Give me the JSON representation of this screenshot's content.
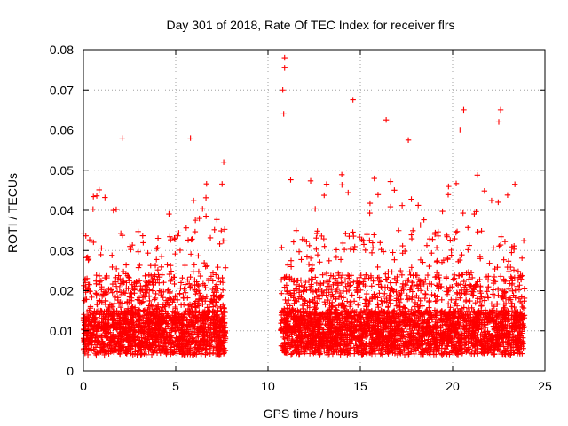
{
  "chart_data": {
    "type": "scatter",
    "title": "Day 301 of 2018, Rate Of TEC Index for receiver flrs",
    "xlabel": "GPS time / hours",
    "ylabel": "ROTI / TECUs",
    "xlim": [
      0,
      25
    ],
    "ylim": [
      0,
      0.08
    ],
    "xticks": [
      0,
      5,
      10,
      15,
      20,
      25
    ],
    "xtick_labels": [
      "0",
      "5",
      "10",
      "15",
      "20",
      "25"
    ],
    "yticks": [
      0,
      0.01,
      0.02,
      0.03,
      0.04,
      0.05,
      0.06,
      0.07,
      0.08
    ],
    "ytick_labels": [
      "0",
      "0.01",
      "0.02",
      "0.03",
      "0.04",
      "0.05",
      "0.06",
      "0.07",
      "0.08"
    ],
    "grid": true,
    "marker": "+",
    "marker_color": "#ff0000",
    "data_segments": [
      {
        "x_start": 0.0,
        "x_end": 7.7,
        "y_floor": 0.002,
        "y_typical_max": 0.035
      },
      {
        "x_start": 10.7,
        "x_end": 23.9,
        "y_floor": 0.002,
        "y_typical_max": 0.035
      }
    ],
    "notable_peaks": [
      {
        "x": 10.9,
        "y": 0.078
      },
      {
        "x": 10.9,
        "y": 0.0755
      },
      {
        "x": 10.8,
        "y": 0.07
      },
      {
        "x": 10.85,
        "y": 0.064
      },
      {
        "x": 14.6,
        "y": 0.0675
      },
      {
        "x": 20.6,
        "y": 0.065
      },
      {
        "x": 22.6,
        "y": 0.065
      },
      {
        "x": 22.5,
        "y": 0.062
      },
      {
        "x": 16.4,
        "y": 0.0625
      },
      {
        "x": 5.8,
        "y": 0.058
      },
      {
        "x": 2.1,
        "y": 0.058
      },
      {
        "x": 17.6,
        "y": 0.0575
      },
      {
        "x": 20.4,
        "y": 0.06
      },
      {
        "x": 7.6,
        "y": 0.052
      }
    ]
  }
}
